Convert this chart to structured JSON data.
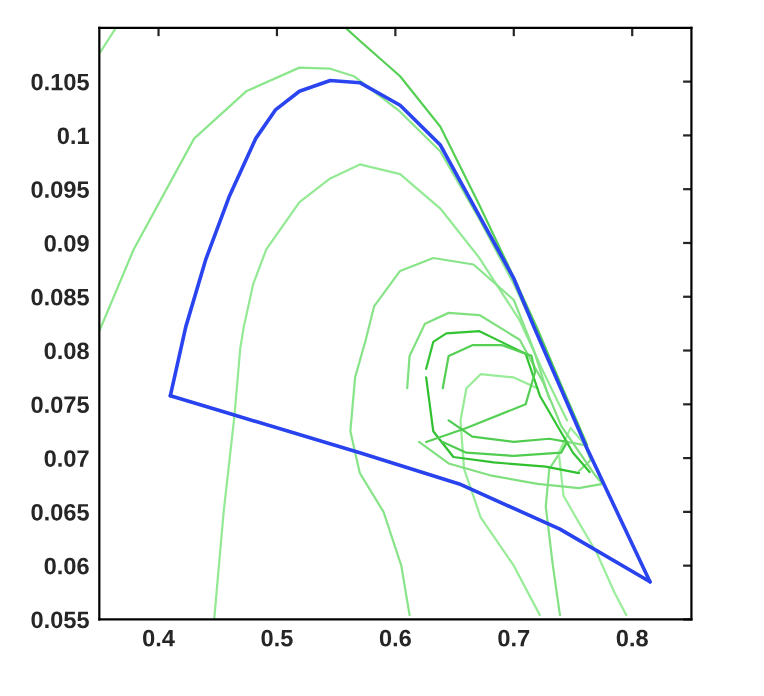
{
  "chart_data": {
    "type": "line",
    "xlim": [
      0.35,
      0.85
    ],
    "ylim": [
      0.055,
      0.11
    ],
    "xticks": [
      0.4,
      0.5,
      0.6,
      0.7,
      0.8
    ],
    "yticks": [
      0.055,
      0.06,
      0.065,
      0.07,
      0.075,
      0.08,
      0.085,
      0.09,
      0.095,
      0.1,
      0.105
    ],
    "grid": false,
    "legend": false,
    "marker": "none",
    "line_style": "solid",
    "series": [
      {
        "color": "#90e890",
        "x": [
          0.35,
          0.357,
          0.364
        ],
        "values": [
          0.1076,
          0.1088,
          0.11
        ]
      },
      {
        "color": "#8ce68c",
        "x": [
          0.35,
          0.379,
          0.43,
          0.474,
          0.519,
          0.545,
          0.565,
          0.604,
          0.638,
          0.671,
          0.7,
          0.72,
          0.74,
          0.76
        ],
        "values": [
          0.0818,
          0.0894,
          0.0997,
          0.1041,
          0.1063,
          0.1062,
          0.1055,
          0.1022,
          0.0985,
          0.0922,
          0.0862,
          0.0815,
          0.0765,
          0.0715
        ]
      },
      {
        "color": "#55d055",
        "x": [
          0.558,
          0.57,
          0.604,
          0.638,
          0.671,
          0.7,
          0.72,
          0.74,
          0.762
        ],
        "values": [
          0.11,
          0.1088,
          0.1055,
          0.1008,
          0.0935,
          0.0868,
          0.082,
          0.0768,
          0.0712
        ]
      },
      {
        "color": "#94ea94",
        "x": [
          0.447,
          0.455,
          0.464,
          0.469,
          0.472,
          0.48,
          0.491,
          0.519,
          0.545,
          0.57,
          0.604,
          0.638,
          0.671,
          0.705,
          0.725,
          0.745
        ],
        "values": [
          0.055,
          0.065,
          0.0738,
          0.0802,
          0.0822,
          0.0862,
          0.0894,
          0.0938,
          0.096,
          0.0973,
          0.0964,
          0.0932,
          0.0886,
          0.0828,
          0.078,
          0.0735
        ]
      },
      {
        "color": "#88e488",
        "x": [
          0.612,
          0.605,
          0.59,
          0.57,
          0.562,
          0.566,
          0.575,
          0.582,
          0.604,
          0.632,
          0.666,
          0.7,
          0.717,
          0.73
        ],
        "values": [
          0.0554,
          0.06,
          0.065,
          0.0686,
          0.0725,
          0.0775,
          0.081,
          0.0841,
          0.0874,
          0.0886,
          0.088,
          0.0847,
          0.08,
          0.0755
        ]
      },
      {
        "color": "#98ec98",
        "x": [
          0.722,
          0.7,
          0.672,
          0.658,
          0.655,
          0.66,
          0.672,
          0.7,
          0.72
        ],
        "values": [
          0.0554,
          0.06,
          0.0645,
          0.069,
          0.0735,
          0.0765,
          0.0778,
          0.0775,
          0.0765
        ]
      },
      {
        "color": "#84e284",
        "x": [
          0.739,
          0.733,
          0.727,
          0.73,
          0.745,
          0.76,
          0.765,
          0.755
        ],
        "values": [
          0.0554,
          0.06,
          0.0655,
          0.069,
          0.0715,
          0.0712,
          0.0698,
          0.0688
        ]
      },
      {
        "color": "#9cee9c",
        "x": [
          0.795,
          0.785,
          0.77,
          0.755,
          0.742,
          0.738,
          0.748,
          0.762
        ],
        "values": [
          0.0554,
          0.0575,
          0.0612,
          0.064,
          0.0665,
          0.0705,
          0.0728,
          0.071
        ]
      },
      {
        "color": "#80e080",
        "x": [
          0.61,
          0.612,
          0.625,
          0.645,
          0.671,
          0.705,
          0.725,
          0.74,
          0.768,
          0.775,
          0.755,
          0.72,
          0.68,
          0.645,
          0.62
        ],
        "values": [
          0.0765,
          0.0795,
          0.0825,
          0.0835,
          0.0833,
          0.081,
          0.077,
          0.073,
          0.0685,
          0.0676,
          0.0672,
          0.0676,
          0.0684,
          0.0695,
          0.0715
        ]
      },
      {
        "color": "#33c433",
        "x": [
          0.626,
          0.632,
          0.643,
          0.671,
          0.71,
          0.722,
          0.75,
          0.764
        ],
        "values": [
          0.0783,
          0.0808,
          0.0816,
          0.0818,
          0.0797,
          0.0758,
          0.0705,
          0.0687
        ]
      },
      {
        "color": "#30c030",
        "x": [
          0.755,
          0.727,
          0.683,
          0.649,
          0.632,
          0.626
        ],
        "values": [
          0.0686,
          0.0692,
          0.0696,
          0.0701,
          0.0725,
          0.0775
        ]
      },
      {
        "color": "#55d055",
        "x": [
          0.626,
          0.66,
          0.71,
          0.718,
          0.715,
          0.69,
          0.665,
          0.645,
          0.64
        ],
        "values": [
          0.0715,
          0.0728,
          0.075,
          0.078,
          0.0795,
          0.0805,
          0.0805,
          0.0795,
          0.0765
        ]
      },
      {
        "color": "#50cc50",
        "x": [
          0.645,
          0.665,
          0.7,
          0.73,
          0.745,
          0.74,
          0.7,
          0.66,
          0.64
        ],
        "values": [
          0.0735,
          0.072,
          0.0715,
          0.0718,
          0.0715,
          0.0705,
          0.0702,
          0.0705,
          0.0715
        ]
      },
      {
        "color": "#2a44f0",
        "x": [
          0.41,
          0.423,
          0.44,
          0.46,
          0.482,
          0.499,
          0.519,
          0.545,
          0.57,
          0.604,
          0.638,
          0.671,
          0.7,
          0.717,
          0.761,
          0.815
        ],
        "values": [
          0.0758,
          0.0822,
          0.0885,
          0.0944,
          0.0997,
          0.1024,
          0.1041,
          0.1051,
          0.1049,
          0.1028,
          0.0991,
          0.0925,
          0.0867,
          0.0822,
          0.0711,
          0.0585
        ]
      },
      {
        "color": "#2842ee",
        "x": [
          0.815,
          0.739,
          0.654,
          0.57,
          0.464,
          0.41
        ],
        "values": [
          0.0585,
          0.0634,
          0.0676,
          0.0705,
          0.074,
          0.0758
        ]
      }
    ]
  }
}
